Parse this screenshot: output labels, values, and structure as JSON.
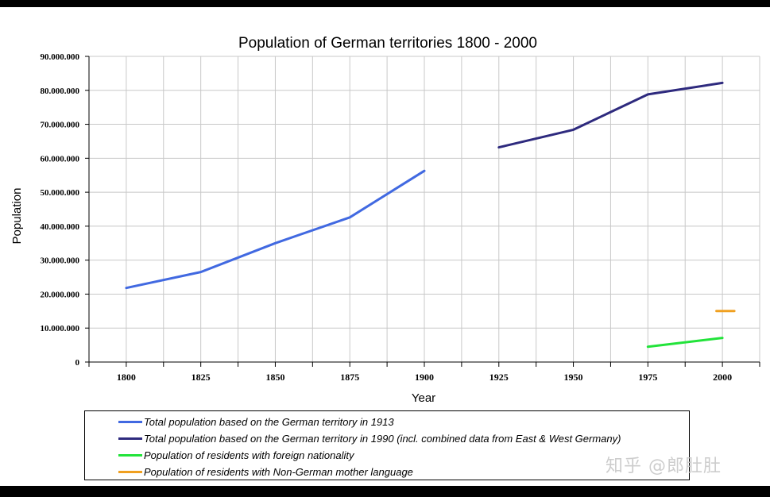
{
  "chart_data": {
    "type": "line",
    "title": "Population of German territories 1800 - 2000",
    "xlabel": "Year",
    "ylabel": "Population",
    "x_ticks": [
      "1800",
      "1825",
      "1850",
      "1875",
      "1900",
      "1925",
      "1950",
      "1975",
      "2000"
    ],
    "y_ticks": [
      "0",
      "10.000.000",
      "20.000.000",
      "30.000.000",
      "40.000.000",
      "50.000.000",
      "60.000.000",
      "70.000.000",
      "80.000.000",
      "90.000.000"
    ],
    "xlim": [
      1787.5,
      2012.5
    ],
    "ylim": [
      0,
      90000000
    ],
    "grid": true,
    "legend_position": "bottom",
    "series": [
      {
        "name": "Total population based on the German territory in 1913",
        "color": "#4169E1",
        "points": [
          [
            1800,
            21800000
          ],
          [
            1825,
            26500000
          ],
          [
            1850,
            35000000
          ],
          [
            1875,
            42600000
          ],
          [
            1900,
            56300000
          ]
        ]
      },
      {
        "name": "Total population based on the German territory in 1990 (incl. combined data from East & West Germany)",
        "color": "#2E2A7E",
        "points": [
          [
            1925,
            63200000
          ],
          [
            1950,
            68400000
          ],
          [
            1975,
            78800000
          ],
          [
            2000,
            82200000
          ]
        ]
      },
      {
        "name": "Population of residents with foreign nationality",
        "color": "#22E33A",
        "points": [
          [
            1975,
            4500000
          ],
          [
            2000,
            7100000
          ]
        ]
      },
      {
        "name": "Population of residents with Non-German mother language",
        "color": "#F0A020",
        "points": [
          [
            1998,
            15000000
          ],
          [
            2004,
            15000000
          ]
        ]
      }
    ]
  },
  "watermark": "知乎 @郎肚肚"
}
